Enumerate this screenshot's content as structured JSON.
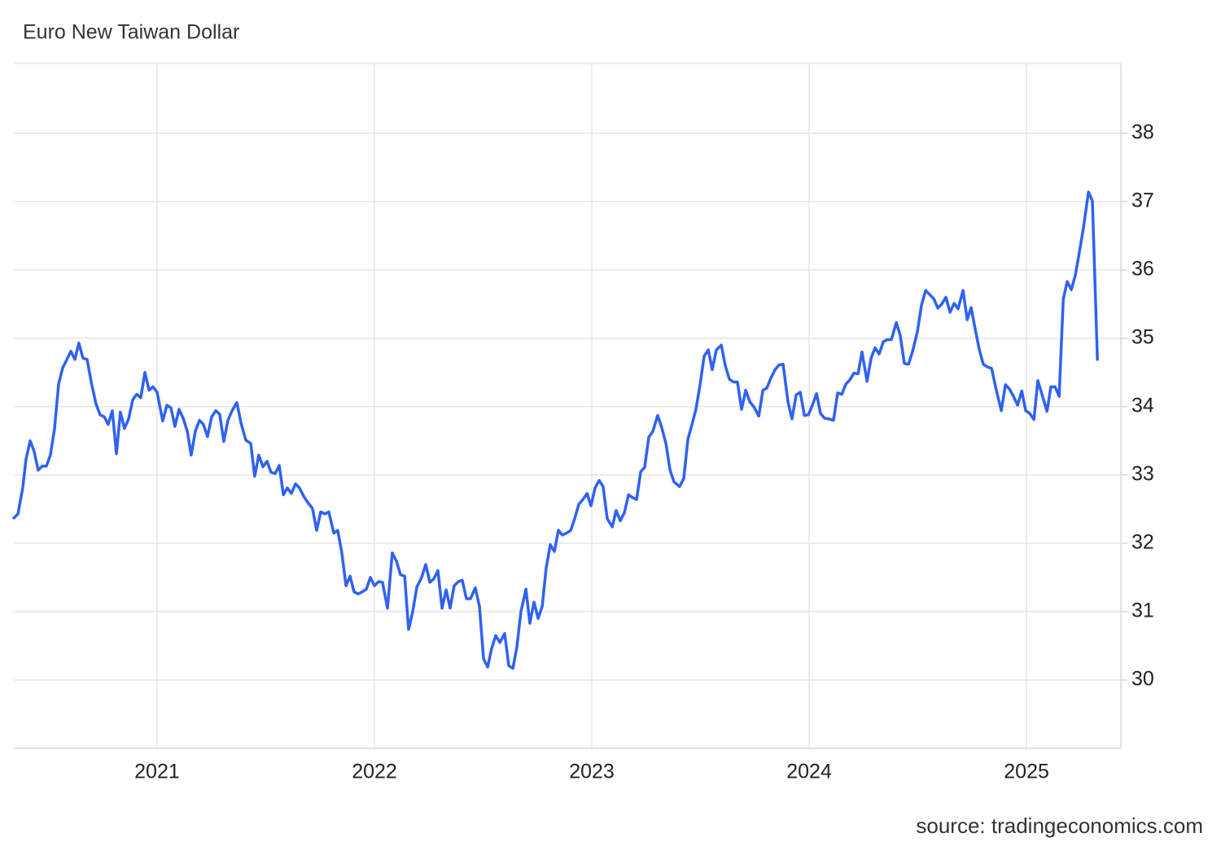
{
  "chart_data": {
    "type": "line",
    "title": "Euro New Taiwan Dollar",
    "source": "source: tradingeconomics.com",
    "x": [
      2020.341,
      2020.36,
      2020.382,
      2020.397,
      2020.416,
      2020.434,
      2020.453,
      2020.472,
      2020.491,
      2020.509,
      2020.528,
      2020.547,
      2020.566,
      2020.584,
      2020.603,
      2020.622,
      2020.64,
      2020.659,
      2020.678,
      2020.697,
      2020.719,
      2020.738,
      2020.757,
      2020.775,
      2020.794,
      2020.813,
      2020.831,
      2020.85,
      2020.869,
      2020.888,
      2020.906,
      2020.925,
      2020.944,
      2020.963,
      2020.981,
      2021.0,
      2021.026,
      2021.045,
      2021.064,
      2021.082,
      2021.101,
      2021.12,
      2021.139,
      2021.157,
      2021.176,
      2021.195,
      2021.213,
      2021.232,
      2021.251,
      2021.27,
      2021.288,
      2021.307,
      2021.326,
      2021.345,
      2021.367,
      2021.386,
      2021.408,
      2021.431,
      2021.449,
      2021.468,
      2021.487,
      2021.506,
      2021.524,
      2021.543,
      2021.562,
      2021.581,
      2021.599,
      2021.618,
      2021.637,
      2021.655,
      2021.674,
      2021.693,
      2021.715,
      2021.734,
      2021.753,
      2021.772,
      2021.79,
      2021.813,
      2021.831,
      2021.85,
      2021.869,
      2021.888,
      2021.906,
      2021.925,
      2021.944,
      2021.963,
      2021.981,
      2022.0,
      2022.019,
      2022.037,
      2022.06,
      2022.082,
      2022.101,
      2022.12,
      2022.139,
      2022.157,
      2022.176,
      2022.195,
      2022.217,
      2022.236,
      2022.255,
      2022.273,
      2022.292,
      2022.311,
      2022.33,
      2022.348,
      2022.367,
      2022.386,
      2022.404,
      2022.423,
      2022.442,
      2022.464,
      2022.483,
      2022.502,
      2022.521,
      2022.539,
      2022.558,
      2022.577,
      2022.599,
      2022.618,
      2022.637,
      2022.655,
      2022.674,
      2022.697,
      2022.715,
      2022.734,
      2022.753,
      2022.772,
      2022.79,
      2022.809,
      2022.828,
      2022.846,
      2022.865,
      2022.884,
      2022.903,
      2022.921,
      2022.94,
      2022.959,
      2022.978,
      2022.996,
      2023.015,
      2023.034,
      2023.052,
      2023.071,
      2023.094,
      2023.112,
      2023.131,
      2023.15,
      2023.169,
      2023.187,
      2023.206,
      2023.225,
      2023.243,
      2023.262,
      2023.281,
      2023.303,
      2023.322,
      2023.341,
      2023.36,
      2023.378,
      2023.404,
      2023.423,
      2023.442,
      2023.461,
      2023.479,
      2023.498,
      2023.517,
      2023.536,
      2023.554,
      2023.573,
      2023.596,
      2023.614,
      2023.633,
      2023.652,
      2023.67,
      2023.689,
      2023.708,
      2023.727,
      2023.745,
      2023.768,
      2023.787,
      2023.805,
      2023.824,
      2023.843,
      2023.861,
      2023.88,
      2023.903,
      2023.921,
      2023.94,
      2023.959,
      2023.978,
      2023.996,
      2024.015,
      2024.034,
      2024.052,
      2024.071,
      2024.09,
      2024.112,
      2024.131,
      2024.15,
      2024.169,
      2024.187,
      2024.206,
      2024.225,
      2024.243,
      2024.266,
      2024.285,
      2024.303,
      2024.322,
      2024.341,
      2024.36,
      2024.378,
      2024.401,
      2024.419,
      2024.438,
      2024.457,
      2024.476,
      2024.498,
      2024.517,
      2024.536,
      2024.554,
      2024.573,
      2024.592,
      2024.61,
      2024.629,
      2024.648,
      2024.667,
      2024.685,
      2024.708,
      2024.727,
      2024.745,
      2024.764,
      2024.783,
      2024.801,
      2024.82,
      2024.839,
      2024.861,
      2024.884,
      2024.903,
      2024.921,
      2024.94,
      2024.959,
      2024.978,
      2024.996,
      2025.015,
      2025.034,
      2025.052,
      2025.071,
      2025.094,
      2025.112,
      2025.131,
      2025.15,
      2025.169,
      2025.187,
      2025.206,
      2025.225,
      2025.243,
      2025.262,
      2025.285,
      2025.303,
      2025.326
    ],
    "series": [
      {
        "color": "#2f62f0",
        "values": [
          32.37,
          32.43,
          32.81,
          33.23,
          33.5,
          33.35,
          33.07,
          33.13,
          33.13,
          33.29,
          33.67,
          34.33,
          34.57,
          34.68,
          34.81,
          34.69,
          34.93,
          34.71,
          34.69,
          34.36,
          34.04,
          33.88,
          33.85,
          33.74,
          33.94,
          33.31,
          33.92,
          33.68,
          33.82,
          34.1,
          34.18,
          34.13,
          34.5,
          34.24,
          34.29,
          34.21,
          33.79,
          34.02,
          33.98,
          33.71,
          33.96,
          33.83,
          33.64,
          33.29,
          33.64,
          33.8,
          33.74,
          33.56,
          33.85,
          33.94,
          33.89,
          33.49,
          33.8,
          33.94,
          34.06,
          33.76,
          33.51,
          33.46,
          32.98,
          33.29,
          33.12,
          33.2,
          33.04,
          33.02,
          33.14,
          32.71,
          32.81,
          32.73,
          32.87,
          32.81,
          32.69,
          32.6,
          32.51,
          32.19,
          32.46,
          32.43,
          32.46,
          32.15,
          32.19,
          31.86,
          31.38,
          31.52,
          31.29,
          31.26,
          31.29,
          31.33,
          31.5,
          31.38,
          31.44,
          31.43,
          31.05,
          31.86,
          31.74,
          31.54,
          31.52,
          30.74,
          31.0,
          31.36,
          31.5,
          31.69,
          31.43,
          31.48,
          31.6,
          31.05,
          31.32,
          31.05,
          31.38,
          31.44,
          31.46,
          31.19,
          31.19,
          31.35,
          31.08,
          30.31,
          30.19,
          30.46,
          30.65,
          30.55,
          30.68,
          30.21,
          30.17,
          30.48,
          31.0,
          31.33,
          30.83,
          31.14,
          30.9,
          31.08,
          31.64,
          31.98,
          31.88,
          32.19,
          32.12,
          32.15,
          32.19,
          32.36,
          32.57,
          32.64,
          32.73,
          32.55,
          32.81,
          32.92,
          32.83,
          32.36,
          32.24,
          32.48,
          32.33,
          32.45,
          32.71,
          32.67,
          32.64,
          33.05,
          33.11,
          33.55,
          33.64,
          33.87,
          33.69,
          33.46,
          33.07,
          32.9,
          32.83,
          32.95,
          33.52,
          33.74,
          33.96,
          34.32,
          34.74,
          34.83,
          34.54,
          34.83,
          34.9,
          34.6,
          34.4,
          34.36,
          34.36,
          33.96,
          34.24,
          34.07,
          34.0,
          33.86,
          34.24,
          34.27,
          34.42,
          34.54,
          34.61,
          34.62,
          34.06,
          33.82,
          34.17,
          34.21,
          33.87,
          33.88,
          34.02,
          34.19,
          33.9,
          33.83,
          33.82,
          33.8,
          34.2,
          34.18,
          34.33,
          34.39,
          34.49,
          34.48,
          34.8,
          34.37,
          34.71,
          34.86,
          34.77,
          34.95,
          34.98,
          34.98,
          35.23,
          35.04,
          34.63,
          34.62,
          34.81,
          35.1,
          35.49,
          35.7,
          35.64,
          35.58,
          35.44,
          35.5,
          35.6,
          35.38,
          35.51,
          35.43,
          35.7,
          35.27,
          35.45,
          35.13,
          34.83,
          34.62,
          34.58,
          34.56,
          34.24,
          33.94,
          34.32,
          34.26,
          34.15,
          34.02,
          34.23,
          33.94,
          33.9,
          33.81,
          34.38,
          34.18,
          33.93,
          34.29,
          34.29,
          34.15,
          35.57,
          35.83,
          35.71,
          35.93,
          36.26,
          36.62,
          37.14,
          37.01,
          34.69
        ]
      }
    ],
    "xlim": [
      2020.341,
      2025.434
    ],
    "xticks": [
      2021,
      2022,
      2023,
      2024,
      2025
    ],
    "ylim": [
      29,
      39.02
    ],
    "yticks": [
      30,
      31,
      32,
      33,
      34,
      35,
      36,
      37,
      38
    ],
    "grid": true
  }
}
